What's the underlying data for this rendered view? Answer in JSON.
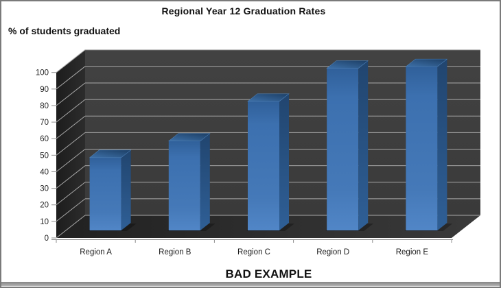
{
  "chart_data": {
    "type": "bar",
    "projection": "3d-column",
    "title": "Regional Year 12 Graduation Rates",
    "ylabel": "% of students graduated",
    "xlabel": "",
    "categories": [
      "Region A",
      "Region B",
      "Region C",
      "Region D",
      "Region E"
    ],
    "values": [
      44,
      54,
      78,
      98,
      99
    ],
    "ylim": [
      0,
      100
    ],
    "yticks": [
      0,
      10,
      20,
      30,
      40,
      50,
      60,
      70,
      80,
      90,
      100
    ],
    "grid": "horizontal",
    "legend": "none",
    "annotation": "BAD EXAMPLE",
    "colors": {
      "bar": "#4A7EBB",
      "bar_shade": "#24497A",
      "bar_top": "#2A567F",
      "back_wall": "#3E3E3E",
      "side_wall": "#242424",
      "floor": "#2E2E2E",
      "gridline": "#A9A9A9",
      "axis": "#8C8C8C",
      "text": "#1A1A1A"
    }
  }
}
